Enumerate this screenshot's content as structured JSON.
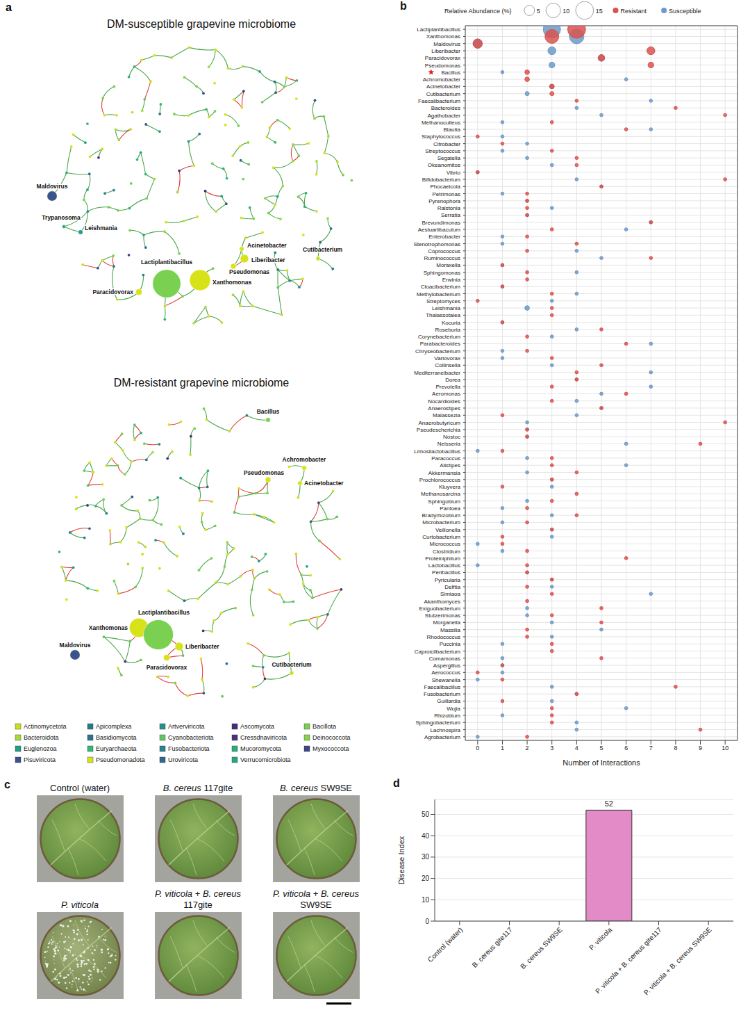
{
  "chart_data": [
    {
      "panel": "b",
      "type": "scatter",
      "x_label": "Number of Interactions",
      "size_label": "Relative Abundance (%)",
      "size_ticks": [
        5,
        10,
        15
      ],
      "marked_category": "Bacillus",
      "grid": true,
      "legend": "top",
      "xlim": [
        -0.5,
        10.5
      ],
      "xticks": [
        0,
        1,
        2,
        3,
        4,
        5,
        6,
        7,
        8,
        9,
        10
      ],
      "categories": [
        "Lactiplantibacillus",
        "Xanthomonas",
        "Maldovirus",
        "Liberibacter",
        "Paracidovorax",
        "Pseudomonas",
        "Bacillus",
        "Achromobacter",
        "Acinetobacter",
        "Cutibacterium",
        "Faecalibacterium",
        "Bacteroides",
        "Agathobacter",
        "Methanoculleus",
        "Blautia",
        "Staphylococcus",
        "Citrobacter",
        "Streptococcus",
        "Segatella",
        "Okeanomitos",
        "Vibrio",
        "Bifidobacterium",
        "Phocaeicola",
        "Petrimonas",
        "Pyrenophora",
        "Ralstonia",
        "Serratia",
        "Brevundimonas",
        "Aestuariibaculum",
        "Enterobacter",
        "Stenotrophomonas",
        "Coprococcus",
        "Ruminococcus",
        "Moraxella",
        "Sphingomonas",
        "Erwinia",
        "Cloacibacterium",
        "Methylobacterium",
        "Streptomyces",
        "Leishmania",
        "Thalassotalea",
        "Kocuria",
        "Roseburia",
        "Corynebacterium",
        "Parabacteroides",
        "Chryseobacterium",
        "Variovorax",
        "Collinsella",
        "Mediterraneibacter",
        "Dorea",
        "Prevotella",
        "Aeromonas",
        "Nocardioides",
        "Anaerostipes",
        "Malassezia",
        "Anaerobutyricum",
        "Pseudescherichia",
        "Nostoc",
        "Neisseria",
        "Limosilactobacillus",
        "Paracoccus",
        "Alistipes",
        "Akkermansia",
        "Prochlorococcus",
        "Kluyvera",
        "Methanosarcina",
        "Sphingobium",
        "Pantoea",
        "Bradyrhizobium",
        "Microbacterium",
        "Veillonella",
        "Curtobacterium",
        "Micrococcus",
        "Clostridium",
        "Proteiniphilum",
        "Lactobacillus",
        "Peribacillus",
        "Pyricularia",
        "Delftia",
        "Simiaoa",
        "Akanthomyces",
        "Exiguobacterium",
        "Stutzerimonas",
        "Morganella",
        "Massilia",
        "Rhodococcus",
        "Puccinia",
        "Caproiciibacterium",
        "Comamonas",
        "Aspergillus",
        "Aerococcus",
        "Shewanella",
        "Faecalibacillus",
        "Fusobacterium",
        "Guillardia",
        "Wujia",
        "Rhizobium",
        "Sphingobacterium",
        "Lachnospira",
        "Agrobacterium"
      ],
      "series": [
        {
          "name": "Resistant",
          "color": "#d9534f",
          "values": [
            4,
            3,
            0,
            7,
            5,
            7,
            2,
            2,
            3,
            3,
            4,
            8,
            10,
            3,
            6,
            0,
            1,
            3,
            4,
            4,
            0,
            10,
            5,
            2,
            2,
            2,
            2,
            7,
            3,
            2,
            4,
            2,
            7,
            1,
            2,
            2,
            1,
            3,
            0,
            3,
            3,
            1,
            5,
            2,
            6,
            2,
            3,
            5,
            4,
            4,
            3,
            6,
            3,
            5,
            1,
            10,
            2,
            2,
            9,
            1,
            3,
            3,
            4,
            3,
            1,
            4,
            3,
            2,
            4,
            2,
            3,
            1,
            1,
            2,
            6,
            2,
            2,
            3,
            2,
            3,
            2,
            5,
            3,
            5,
            2,
            2,
            3,
            3,
            5,
            1,
            0,
            1,
            8,
            4,
            1,
            3,
            3,
            3,
            9,
            2
          ],
          "sizes": [
            15,
            9,
            4,
            3,
            2,
            1.5,
            1,
            1,
            1,
            0.8,
            0.5,
            0.5,
            0.5,
            0.5,
            0.5,
            0.5,
            0.5,
            0.5,
            0.5,
            0.5,
            0.5,
            0.5,
            0.5,
            0.5,
            0.5,
            0.5,
            0.5,
            0.5,
            0.5,
            0.5,
            0.5,
            0.5,
            0.5,
            0.5,
            0.5,
            0.5,
            0.5,
            0.5,
            0.5,
            0.5,
            0.5,
            0.5,
            0.5,
            0.5,
            0.5,
            0.5,
            0.5,
            0.5,
            0.5,
            0.5,
            0.5,
            0.5,
            0.5,
            0.5,
            0.5,
            0.5,
            0.5,
            0.5,
            0.5,
            0.5,
            0.5,
            0.5,
            0.5,
            0.5,
            0.5,
            0.5,
            0.5,
            0.5,
            0.5,
            0.5,
            0.5,
            0.5,
            0.5,
            0.5,
            0.5,
            0.5,
            0.5,
            0.5,
            0.5,
            0.5,
            0.5,
            0.5,
            0.5,
            0.5,
            0.5,
            0.5,
            0.5,
            0.5,
            0.5,
            0.5,
            0.5,
            0.5,
            0.5,
            0.5,
            0.5,
            0.5,
            0.5,
            0.5,
            0.5,
            0.5
          ]
        },
        {
          "name": "Susceptible",
          "color": "#6d9ac6",
          "values": [
            3,
            4,
            0,
            3,
            5,
            3,
            1,
            6,
            3,
            2,
            7,
            4,
            5,
            1,
            7,
            1,
            2,
            1,
            2,
            3,
            0,
            4,
            5,
            1,
            2,
            3,
            2,
            7,
            6,
            1,
            1,
            4,
            5,
            1,
            4,
            null,
            1,
            4,
            3,
            2,
            null,
            1,
            4,
            3,
            7,
            1,
            1,
            3,
            7,
            4,
            7,
            5,
            4,
            5,
            4,
            2,
            2,
            2,
            6,
            0,
            2,
            6,
            2,
            3,
            3,
            null,
            2,
            1,
            3,
            1,
            3,
            3,
            0,
            1,
            null,
            0,
            2,
            3,
            3,
            7,
            null,
            2,
            2,
            3,
            5,
            3,
            1,
            null,
            1,
            1,
            1,
            0,
            3,
            4,
            3,
            6,
            1,
            4,
            4,
            0
          ],
          "sizes": [
            14,
            10,
            4,
            3,
            2,
            1.5,
            0.5,
            0.5,
            1,
            0.8,
            0.5,
            0.5,
            0.5,
            0.5,
            0.5,
            0.5,
            0.5,
            0.5,
            0.5,
            0.5,
            0.5,
            0.5,
            0.5,
            0.5,
            0.5,
            0.5,
            0.5,
            0.5,
            0.5,
            0.5,
            0.5,
            0.5,
            0.5,
            0.5,
            0.5,
            null,
            0.5,
            0.5,
            0.5,
            1,
            null,
            0.5,
            0.5,
            0.5,
            0.5,
            0.5,
            0.5,
            0.5,
            0.5,
            0.5,
            0.5,
            0.5,
            0.5,
            0.5,
            0.5,
            0.5,
            0.5,
            0.5,
            0.5,
            0.5,
            0.5,
            0.5,
            0.5,
            0.5,
            0.5,
            null,
            0.5,
            0.5,
            0.5,
            0.5,
            0.5,
            0.5,
            0.5,
            0.5,
            null,
            0.5,
            0.5,
            0.5,
            0.5,
            0.5,
            null,
            0.5,
            0.5,
            0.5,
            0.5,
            0.5,
            0.5,
            null,
            0.5,
            0.5,
            0.5,
            0.5,
            0.5,
            0.5,
            0.5,
            0.5,
            0.5,
            0.5,
            0.5,
            0.5
          ]
        }
      ]
    },
    {
      "panel": "d",
      "type": "bar",
      "categories": [
        "Control (water)",
        "B. cereus gite117",
        "B. cereus SW9SE",
        "P. viticola",
        "P. viticola + B. cereus gite117",
        "P. viticola + B. cereus SW9SE"
      ],
      "values": [
        0,
        0,
        0,
        52,
        0,
        0
      ],
      "color": "#e38bc6",
      "y_label": "Disease Index",
      "ylim": [
        0,
        57
      ],
      "yticks": [
        0,
        10,
        20,
        30,
        40,
        50
      ],
      "grid": true,
      "data_labels": true
    }
  ],
  "panel_a": {
    "panel": "a",
    "networks": [
      {
        "title": "DM-susceptible grapevine microbiome",
        "nodes": [
          {
            "label": "Maldovirus",
            "phylum": "Pisuviricota"
          },
          {
            "label": "Trypanosoma",
            "phylum": "Euglenozoa"
          },
          {
            "label": "Leishmania",
            "phylum": "Euglenozoa"
          },
          {
            "label": "Lactiplantibacillus",
            "phylum": "Bacillota"
          },
          {
            "label": "Xanthomonas",
            "phylum": "Pseudomonadota"
          },
          {
            "label": "Paracidovorax",
            "phylum": "Pseudomonadota"
          },
          {
            "label": "Acinetobacter",
            "phylum": "Pseudomonadota"
          },
          {
            "label": "Liberibacter",
            "phylum": "Pseudomonadota"
          },
          {
            "label": "Pseudomonas",
            "phylum": "Pseudomonadota"
          },
          {
            "label": "Cutibacterium",
            "phylum": "Actinomycetota"
          }
        ]
      },
      {
        "title": "DM-resistant grapevine microbiome",
        "nodes": [
          {
            "label": "Bacillus",
            "phylum": "Bacillota"
          },
          {
            "label": "Achromobacter",
            "phylum": "Pseudomonadota"
          },
          {
            "label": "Pseudomonas",
            "phylum": "Pseudomonadota"
          },
          {
            "label": "Acinetobacter",
            "phylum": "Pseudomonadota"
          },
          {
            "label": "Xanthomonas",
            "phylum": "Pseudomonadota"
          },
          {
            "label": "Lactiplantibacillus",
            "phylum": "Bacillota"
          },
          {
            "label": "Liberibacter",
            "phylum": "Pseudomonadota"
          },
          {
            "label": "Paracidovorax",
            "phylum": "Pseudomonadota"
          },
          {
            "label": "Maldovirus",
            "phylum": "Pisuviricota"
          },
          {
            "label": "Cutibacterium",
            "phylum": "Actinomycetota"
          }
        ]
      }
    ],
    "legend": [
      {
        "name": "Actinomycetota",
        "color": "#c8e020"
      },
      {
        "name": "Apicomplexa",
        "color": "#2a788e"
      },
      {
        "name": "Artverviricota",
        "color": "#21918c"
      },
      {
        "name": "Ascomycota",
        "color": "#472d7b"
      },
      {
        "name": "Bacillota",
        "color": "#7ad151"
      },
      {
        "name": "Bacteroidota",
        "color": "#a5db36"
      },
      {
        "name": "Basidiomycota",
        "color": "#2c728e"
      },
      {
        "name": "Cyanobacteriota",
        "color": "#5ec962"
      },
      {
        "name": "Cressdnaviricota",
        "color": "#46337e"
      },
      {
        "name": "Deinococcota",
        "color": "#86d549"
      },
      {
        "name": "Euglenozoa",
        "color": "#1f9e89"
      },
      {
        "name": "Euryarchaeota",
        "color": "#35b779"
      },
      {
        "name": "Fusobacteriota",
        "color": "#25848e"
      },
      {
        "name": "Mucoromycota",
        "color": "#28ae80"
      },
      {
        "name": "Myxococcota",
        "color": "#414487"
      },
      {
        "name": "Pisuviricota",
        "color": "#3b528b"
      },
      {
        "name": "Pseudomonadota",
        "color": "#d8e219"
      },
      {
        "name": "Uroviricota",
        "color": "#31688e"
      },
      {
        "name": "Verrucomicrobiota",
        "color": "#22a884"
      }
    ]
  },
  "panel_c": {
    "panel": "c",
    "images": [
      {
        "title": "Control (water)",
        "sporulation": false
      },
      {
        "title": "B. cereus 117gite",
        "sporulation": false
      },
      {
        "title": "B. cereus SW9SE",
        "sporulation": false
      },
      {
        "title": "P. viticola",
        "sporulation": true
      },
      {
        "title": "P. viticola + B. cereus 117gite",
        "sporulation": false
      },
      {
        "title": "P. viticola + B. cereus SW9SE",
        "sporulation": false
      }
    ]
  }
}
